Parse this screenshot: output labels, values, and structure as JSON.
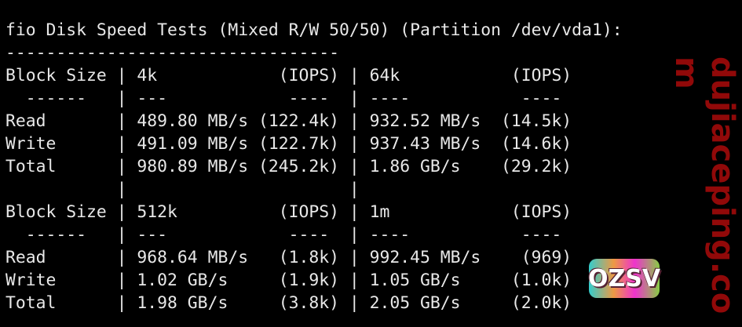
{
  "terminal": {
    "lines": [
      "fio Disk Speed Tests (Mixed R/W 50/50) (Partition /dev/vda1):",
      "---------------------------------",
      "Block Size | 4k            (IOPS) | 64k           (IOPS)",
      "  ------   | ---            ----  | ----           ---- ",
      "Read       | 489.80 MB/s (122.4k) | 932.52 MB/s  (14.5k)",
      "Write      | 491.09 MB/s (122.7k) | 937.43 MB/s  (14.6k)",
      "Total      | 980.89 MB/s (245.2k) | 1.86 GB/s    (29.2k)",
      "           |                      |",
      "Block Size | 512k          (IOPS) | 1m            (IOPS)",
      "  ------   | ---            ----  | ----           ---- ",
      "Read       | 968.64 MB/s   (1.8k) | 992.45 MB/s    (969)",
      "Write      | 1.02 GB/s     (1.9k) | 1.05 GB/s     (1.0k)",
      "Total      | 1.98 GB/s     (3.8k) | 2.05 GB/s     (2.0k)"
    ]
  },
  "watermark": {
    "text": "dujiaceping.com",
    "logo": "OZSV"
  }
}
